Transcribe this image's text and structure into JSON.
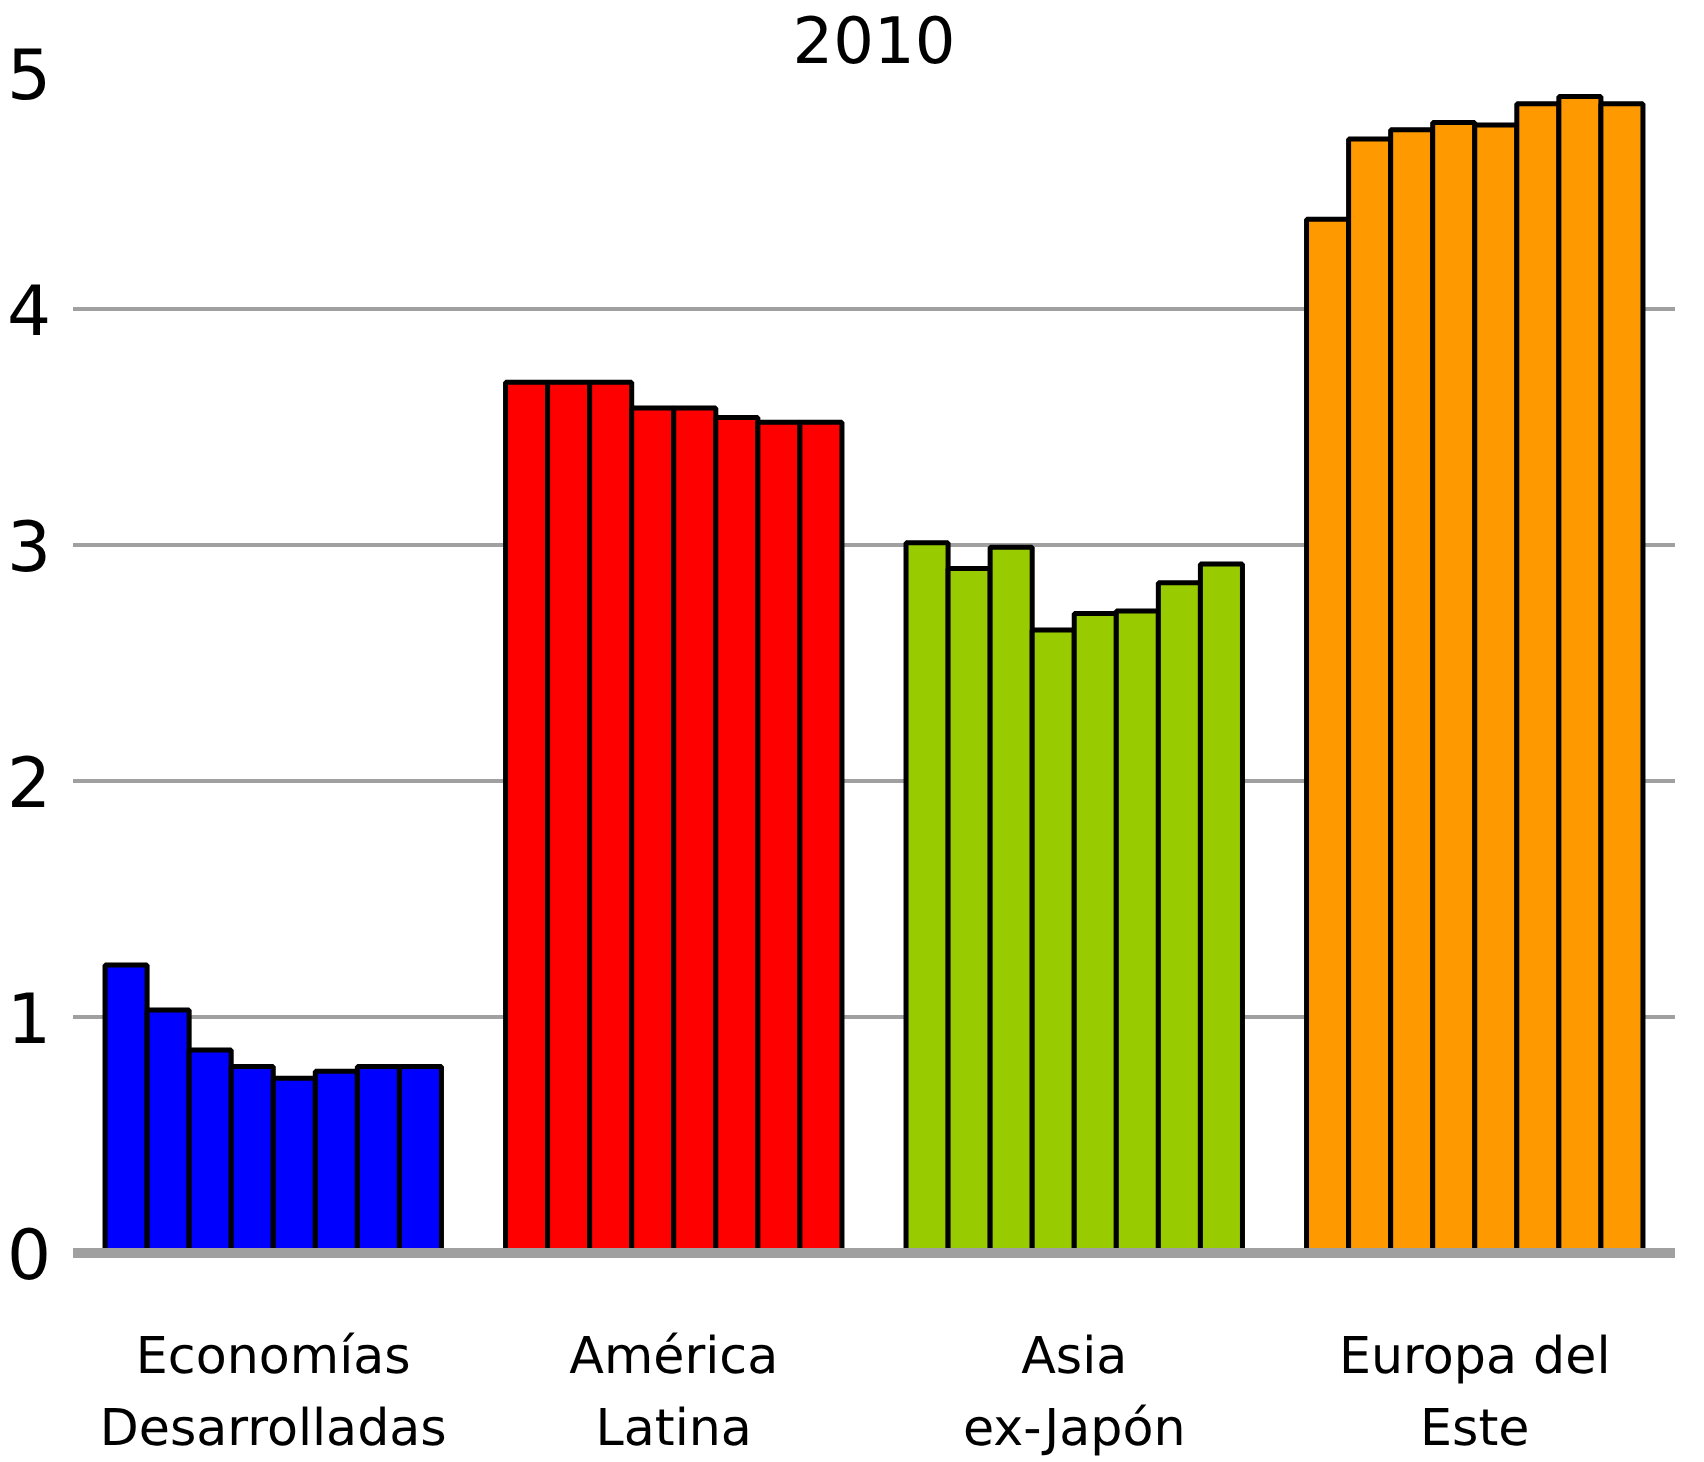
{
  "chart_data": {
    "type": "bar",
    "title": "2010",
    "categories": [
      "Economías\nDesarrolladas",
      "América\nLatina",
      "Asia\nex-Japón",
      "Europa del\nEste"
    ],
    "series": [
      {
        "colors": [
          "#0000ff",
          "#ff0000",
          "#99cc00",
          "#ff9900"
        ],
        "values": [
          1.22,
          3.69,
          3.01,
          4.38
        ]
      },
      {
        "colors": [
          "#0000ff",
          "#ff0000",
          "#99cc00",
          "#ff9900"
        ],
        "values": [
          1.03,
          3.69,
          2.9,
          4.72
        ]
      },
      {
        "colors": [
          "#0000ff",
          "#ff0000",
          "#99cc00",
          "#ff9900"
        ],
        "values": [
          0.86,
          3.69,
          2.99,
          4.76
        ]
      },
      {
        "colors": [
          "#0000ff",
          "#ff0000",
          "#99cc00",
          "#ff9900"
        ],
        "values": [
          0.79,
          3.58,
          2.64,
          4.79
        ]
      },
      {
        "colors": [
          "#0000ff",
          "#ff0000",
          "#99cc00",
          "#ff9900"
        ],
        "values": [
          0.74,
          3.58,
          2.71,
          4.78
        ]
      },
      {
        "colors": [
          "#0000ff",
          "#ff0000",
          "#99cc00",
          "#ff9900"
        ],
        "values": [
          0.77,
          3.54,
          2.72,
          4.87
        ]
      },
      {
        "colors": [
          "#0000ff",
          "#ff0000",
          "#99cc00",
          "#ff9900"
        ],
        "values": [
          0.79,
          3.52,
          2.84,
          4.9
        ]
      },
      {
        "colors": [
          "#0000ff",
          "#ff0000",
          "#99cc00",
          "#ff9900"
        ],
        "values": [
          0.79,
          3.52,
          2.92,
          4.87
        ]
      }
    ],
    "ylim": [
      0,
      5
    ],
    "yticks": [
      0,
      1,
      2,
      3,
      4,
      5
    ],
    "grid": "y"
  }
}
